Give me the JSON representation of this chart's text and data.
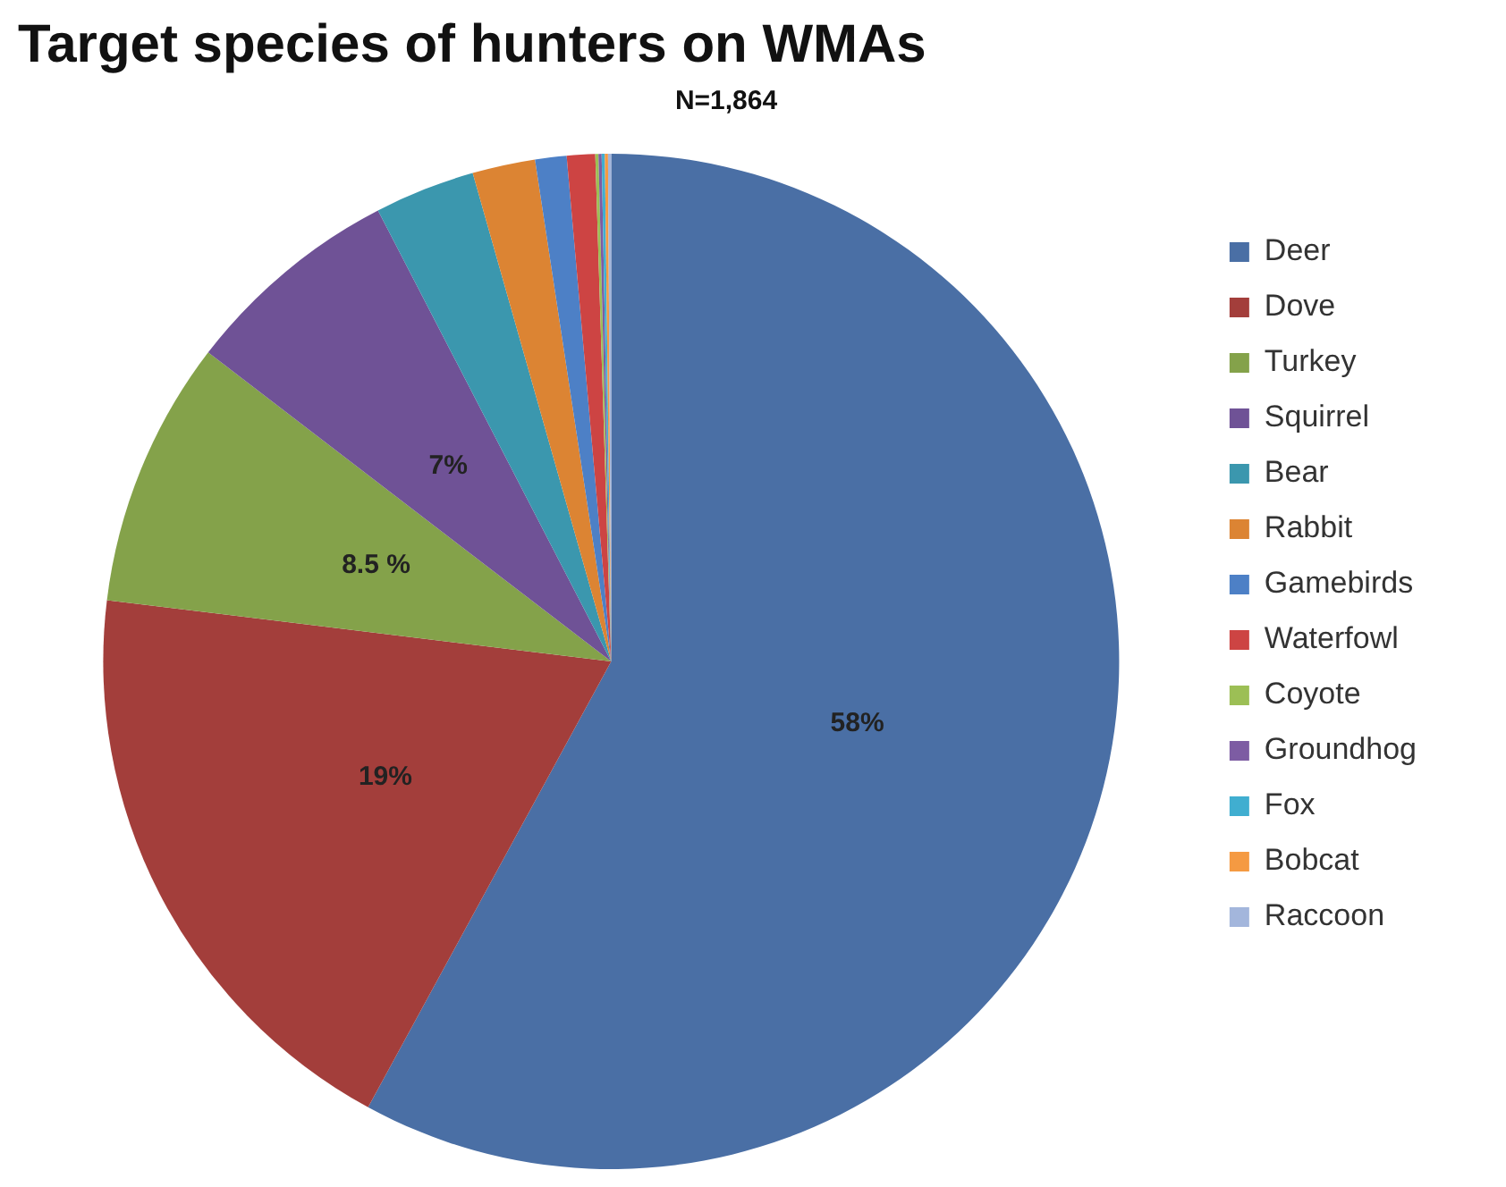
{
  "chart_data": {
    "type": "pie",
    "title": "Target species of hunters on WMAs",
    "subtitle": "N=1,864",
    "categories": [
      "Deer",
      "Dove",
      "Turkey",
      "Squirrel",
      "Bear",
      "Rabbit",
      "Gamebirds",
      "Waterfowl",
      "Coyote",
      "Groundhog",
      "Fox",
      "Bobcat",
      "Raccoon"
    ],
    "values": [
      58,
      19,
      8.5,
      7,
      3.2,
      2,
      1,
      0.9,
      0.1,
      0.1,
      0.1,
      0.1,
      0.1
    ],
    "colors": [
      "#4a6fa5",
      "#a33e3b",
      "#84a24a",
      "#6f5296",
      "#3b97ae",
      "#dc8433",
      "#4d80c6",
      "#cd4443",
      "#9cbf55",
      "#7d5ca3",
      "#40aed0",
      "#f59a42",
      "#a3b6dc"
    ],
    "value_labels": [
      "58%",
      "19%",
      "8.5 %",
      "7%",
      null,
      null,
      null,
      null,
      null,
      null,
      null,
      null,
      null
    ],
    "legend": "right"
  }
}
